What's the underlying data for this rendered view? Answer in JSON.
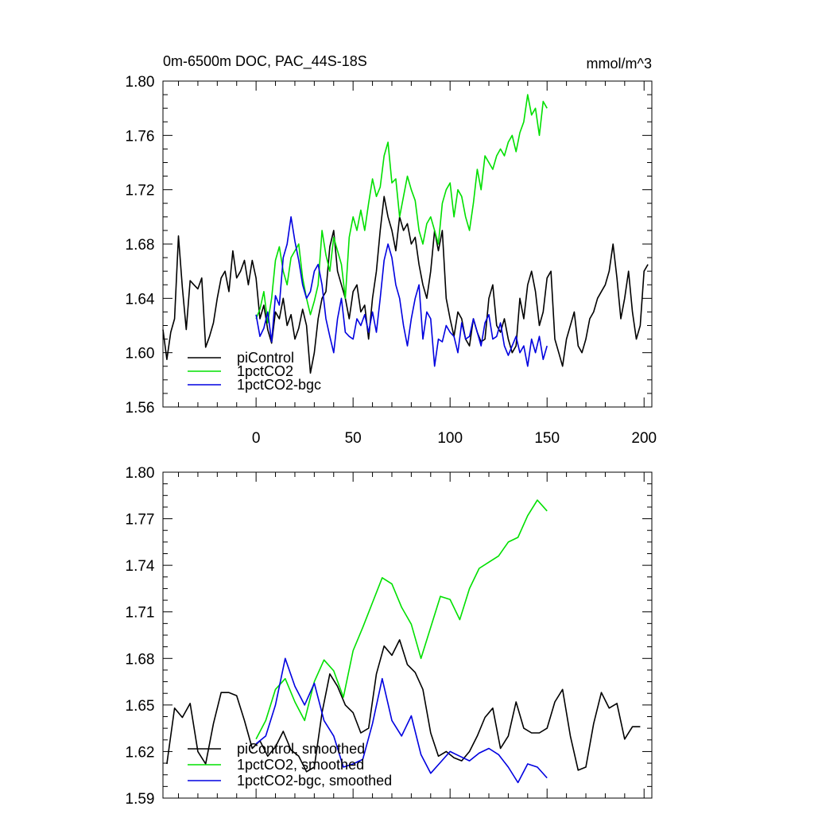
{
  "chart_data": [
    {
      "type": "line",
      "title": "0m-6500m DOC, PAC_44S-18S",
      "units": "mmol/m^3",
      "xlim": [
        -48,
        204
      ],
      "ylim": [
        1.56,
        1.8
      ],
      "xticks": [
        0,
        50,
        100,
        150,
        200
      ],
      "xtick_labels": [
        "0",
        "50",
        "100",
        "150",
        "200"
      ],
      "yticks": [
        1.56,
        1.6,
        1.64,
        1.68,
        1.72,
        1.76,
        1.8
      ],
      "ytick_labels": [
        "1.56",
        "1.60",
        "1.64",
        "1.68",
        "1.72",
        "1.76",
        "1.80"
      ],
      "legend_position": "bottom-left",
      "series": [
        {
          "name": "piControl",
          "color": "#000000",
          "x": [
            -48,
            -46,
            -44,
            -42,
            -40,
            -38,
            -36,
            -34,
            -32,
            -30,
            -28,
            -26,
            -24,
            -22,
            -20,
            -18,
            -16,
            -14,
            -12,
            -10,
            -8,
            -6,
            -4,
            -2,
            0,
            2,
            4,
            6,
            8,
            10,
            12,
            14,
            16,
            18,
            20,
            22,
            24,
            26,
            28,
            30,
            32,
            34,
            36,
            38,
            40,
            42,
            44,
            46,
            48,
            50,
            52,
            54,
            56,
            58,
            60,
            62,
            64,
            66,
            68,
            70,
            72,
            74,
            76,
            78,
            80,
            82,
            84,
            86,
            88,
            90,
            92,
            94,
            96,
            98,
            100,
            102,
            104,
            106,
            108,
            110,
            112,
            114,
            116,
            118,
            120,
            122,
            124,
            126,
            128,
            130,
            132,
            134,
            136,
            138,
            140,
            142,
            144,
            146,
            148,
            150,
            152,
            154,
            156,
            158,
            160,
            162,
            164,
            166,
            168,
            170,
            172,
            174,
            176,
            178,
            180,
            182,
            184,
            186,
            188,
            190,
            192,
            194,
            196,
            198,
            200,
            202
          ],
          "values": [
            1.617,
            1.595,
            1.615,
            1.625,
            1.686,
            1.648,
            1.617,
            1.653,
            1.65,
            1.647,
            1.655,
            1.604,
            1.612,
            1.622,
            1.64,
            1.655,
            1.66,
            1.645,
            1.675,
            1.655,
            1.66,
            1.668,
            1.65,
            1.668,
            1.655,
            1.625,
            1.635,
            1.617,
            1.607,
            1.63,
            1.625,
            1.64,
            1.62,
            1.628,
            1.61,
            1.618,
            1.632,
            1.62,
            1.585,
            1.6,
            1.625,
            1.64,
            1.645,
            1.678,
            1.69,
            1.66,
            1.65,
            1.64,
            1.625,
            1.645,
            1.65,
            1.63,
            1.635,
            1.61,
            1.64,
            1.66,
            1.69,
            1.715,
            1.7,
            1.69,
            1.675,
            1.7,
            1.69,
            1.695,
            1.68,
            1.685,
            1.665,
            1.65,
            1.64,
            1.66,
            1.69,
            1.675,
            1.69,
            1.64,
            1.625,
            1.612,
            1.63,
            1.625,
            1.61,
            1.605,
            1.625,
            1.615,
            1.608,
            1.61,
            1.64,
            1.65,
            1.62,
            1.615,
            1.625,
            1.61,
            1.6,
            1.605,
            1.64,
            1.625,
            1.65,
            1.66,
            1.645,
            1.62,
            1.63,
            1.655,
            1.66,
            1.61,
            1.6,
            1.59,
            1.61,
            1.62,
            1.63,
            1.605,
            1.6,
            1.61,
            1.625,
            1.63,
            1.64,
            1.645,
            1.65,
            1.66,
            1.68,
            1.655,
            1.625,
            1.64,
            1.66,
            1.63,
            1.61,
            1.62,
            1.66,
            1.665
          ]
        },
        {
          "name": "1pctCO2",
          "color": "#00e000",
          "x": [
            0,
            2,
            4,
            6,
            8,
            10,
            12,
            14,
            16,
            18,
            20,
            22,
            24,
            26,
            28,
            30,
            32,
            34,
            36,
            38,
            40,
            42,
            44,
            46,
            48,
            50,
            52,
            54,
            56,
            58,
            60,
            62,
            64,
            66,
            68,
            70,
            72,
            74,
            76,
            78,
            80,
            82,
            84,
            86,
            88,
            90,
            92,
            94,
            96,
            98,
            100,
            102,
            104,
            106,
            108,
            110,
            112,
            114,
            116,
            118,
            120,
            122,
            124,
            126,
            128,
            130,
            132,
            134,
            136,
            138,
            140,
            142,
            144,
            146,
            148,
            150
          ],
          "values": [
            1.625,
            1.632,
            1.645,
            1.622,
            1.64,
            1.668,
            1.678,
            1.66,
            1.65,
            1.67,
            1.675,
            1.68,
            1.655,
            1.64,
            1.628,
            1.638,
            1.65,
            1.69,
            1.672,
            1.66,
            1.685,
            1.675,
            1.665,
            1.64,
            1.685,
            1.7,
            1.69,
            1.705,
            1.69,
            1.71,
            1.728,
            1.715,
            1.722,
            1.745,
            1.755,
            1.725,
            1.728,
            1.7,
            1.715,
            1.73,
            1.72,
            1.712,
            1.69,
            1.68,
            1.695,
            1.7,
            1.69,
            1.68,
            1.71,
            1.72,
            1.725,
            1.7,
            1.72,
            1.715,
            1.7,
            1.69,
            1.71,
            1.735,
            1.72,
            1.745,
            1.74,
            1.735,
            1.745,
            1.75,
            1.745,
            1.755,
            1.76,
            1.748,
            1.762,
            1.77,
            1.79,
            1.775,
            1.78,
            1.76,
            1.785,
            1.78
          ]
        },
        {
          "name": "1pctCO2-bgc",
          "color": "#0000e0",
          "x": [
            0,
            2,
            4,
            6,
            8,
            10,
            12,
            14,
            16,
            18,
            20,
            22,
            24,
            26,
            28,
            30,
            32,
            34,
            36,
            38,
            40,
            42,
            44,
            46,
            48,
            50,
            52,
            54,
            56,
            58,
            60,
            62,
            64,
            66,
            68,
            70,
            72,
            74,
            76,
            78,
            80,
            82,
            84,
            86,
            88,
            90,
            92,
            94,
            96,
            98,
            100,
            102,
            104,
            106,
            108,
            110,
            112,
            114,
            116,
            118,
            120,
            122,
            124,
            126,
            128,
            130,
            132,
            134,
            136,
            138,
            140,
            142,
            144,
            146,
            148,
            150
          ],
          "values": [
            1.628,
            1.612,
            1.618,
            1.63,
            1.608,
            1.642,
            1.635,
            1.67,
            1.68,
            1.7,
            1.682,
            1.668,
            1.65,
            1.64,
            1.645,
            1.66,
            1.665,
            1.65,
            1.625,
            1.612,
            1.6,
            1.625,
            1.64,
            1.615,
            1.612,
            1.61,
            1.625,
            1.62,
            1.628,
            1.615,
            1.63,
            1.615,
            1.64,
            1.668,
            1.68,
            1.67,
            1.65,
            1.64,
            1.62,
            1.605,
            1.625,
            1.64,
            1.65,
            1.61,
            1.63,
            1.625,
            1.59,
            1.61,
            1.608,
            1.62,
            1.615,
            1.612,
            1.6,
            1.622,
            1.61,
            1.612,
            1.625,
            1.615,
            1.605,
            1.622,
            1.628,
            1.61,
            1.612,
            1.622,
            1.605,
            1.598,
            1.605,
            1.612,
            1.6,
            1.605,
            1.59,
            1.61,
            1.6,
            1.612,
            1.595,
            1.605
          ]
        }
      ]
    },
    {
      "type": "line",
      "xlim": [
        -48,
        204
      ],
      "ylim": [
        1.59,
        1.8
      ],
      "xticks": [
        0,
        50,
        100,
        150,
        200
      ],
      "yticks": [
        1.59,
        1.62,
        1.65,
        1.68,
        1.71,
        1.74,
        1.77,
        1.8
      ],
      "ytick_labels": [
        "1.59",
        "1.62",
        "1.65",
        "1.68",
        "1.71",
        "1.74",
        "1.77",
        "1.80"
      ],
      "legend_position": "bottom-left",
      "series": [
        {
          "name": "piControl, smoothed",
          "color": "#000000",
          "x": [
            -46,
            -42,
            -38,
            -34,
            -30,
            -26,
            -22,
            -18,
            -14,
            -10,
            -6,
            -2,
            2,
            6,
            10,
            14,
            18,
            22,
            26,
            30,
            34,
            38,
            42,
            46,
            50,
            54,
            58,
            62,
            66,
            70,
            74,
            78,
            82,
            86,
            90,
            94,
            98,
            102,
            106,
            110,
            114,
            118,
            122,
            126,
            130,
            134,
            138,
            142,
            146,
            150,
            154,
            158,
            162,
            166,
            170,
            174,
            178,
            182,
            186,
            190,
            194,
            198
          ],
          "values": [
            1.612,
            1.648,
            1.642,
            1.651,
            1.62,
            1.612,
            1.638,
            1.658,
            1.658,
            1.656,
            1.64,
            1.622,
            1.627,
            1.617,
            1.623,
            1.633,
            1.621,
            1.617,
            1.607,
            1.61,
            1.645,
            1.67,
            1.662,
            1.65,
            1.645,
            1.632,
            1.635,
            1.67,
            1.688,
            1.682,
            1.692,
            1.676,
            1.671,
            1.66,
            1.632,
            1.617,
            1.62,
            1.616,
            1.614,
            1.62,
            1.63,
            1.642,
            1.648,
            1.622,
            1.63,
            1.652,
            1.635,
            1.632,
            1.632,
            1.635,
            1.652,
            1.66,
            1.63,
            1.608,
            1.61,
            1.638,
            1.658,
            1.648,
            1.651,
            1.628,
            1.636,
            1.636
          ]
        },
        {
          "name": "1pctCO2, smoothed",
          "color": "#00e000",
          "x": [
            0,
            5,
            10,
            15,
            20,
            25,
            30,
            35,
            40,
            45,
            50,
            55,
            60,
            65,
            70,
            75,
            80,
            85,
            90,
            95,
            100,
            105,
            110,
            115,
            120,
            125,
            130,
            135,
            140,
            145,
            150
          ],
          "values": [
            1.628,
            1.64,
            1.66,
            1.667,
            1.652,
            1.64,
            1.665,
            1.679,
            1.672,
            1.655,
            1.685,
            1.7,
            1.716,
            1.732,
            1.728,
            1.713,
            1.702,
            1.68,
            1.7,
            1.72,
            1.718,
            1.705,
            1.725,
            1.738,
            1.742,
            1.746,
            1.755,
            1.758,
            1.772,
            1.782,
            1.775
          ]
        },
        {
          "name": "1pctCO2-bgc, smoothed",
          "color": "#0000e0",
          "x": [
            0,
            5,
            10,
            15,
            20,
            25,
            30,
            35,
            40,
            45,
            50,
            55,
            60,
            65,
            70,
            75,
            80,
            85,
            90,
            95,
            100,
            105,
            110,
            115,
            120,
            125,
            130,
            135,
            140,
            145,
            150
          ],
          "values": [
            1.625,
            1.63,
            1.65,
            1.68,
            1.662,
            1.65,
            1.664,
            1.64,
            1.63,
            1.61,
            1.612,
            1.615,
            1.638,
            1.667,
            1.64,
            1.63,
            1.643,
            1.618,
            1.606,
            1.613,
            1.62,
            1.617,
            1.614,
            1.619,
            1.622,
            1.618,
            1.61,
            1.6,
            1.612,
            1.61,
            1.603
          ]
        }
      ]
    }
  ]
}
